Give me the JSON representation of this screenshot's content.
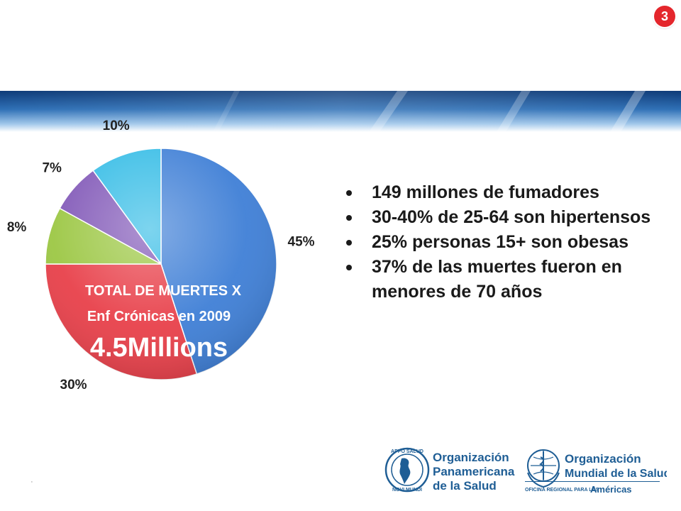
{
  "slide": {
    "number": "3"
  },
  "chart_data": {
    "type": "pie",
    "center_text": {
      "line1": "TOTAL DE MUERTES X",
      "line2": "Enf Crónicas en 2009",
      "line3": "4.5Millions"
    },
    "slices": [
      {
        "label": "45%",
        "value": 45,
        "color": "#3f7fd6"
      },
      {
        "label": "30%",
        "value": 30,
        "color": "#e8404a"
      },
      {
        "label": "8%",
        "value": 8,
        "color": "#9cc744"
      },
      {
        "label": "7%",
        "value": 7,
        "color": "#8259b8"
      },
      {
        "label": "10%",
        "value": 10,
        "color": "#37bde6"
      }
    ]
  },
  "bullets": [
    {
      "text": "149 millones de fumadores"
    },
    {
      "text": "30-40% de 25-64 son hipertensos"
    },
    {
      "text": "25% personas 15+ son obesas"
    },
    {
      "text": "37% de las muertes fueron en menores de 70 años"
    }
  ],
  "footnote": "‚",
  "logos": {
    "paho": {
      "name_lines": [
        "Organización",
        "Panamericana",
        "de la Salud"
      ],
      "seal_top": "APPO SALUD",
      "seal_bottom": "NOVI MUNDI"
    },
    "who": {
      "name_lines": [
        "Organización",
        "Mundial de la Salud"
      ],
      "subtitle": "OFICINA REGIONAL PARA LAS",
      "region": "Américas"
    }
  }
}
